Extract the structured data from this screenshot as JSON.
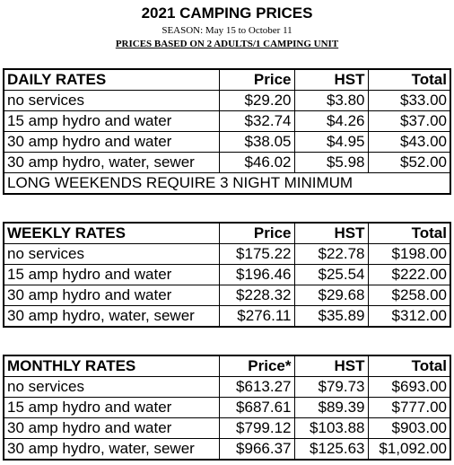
{
  "header": {
    "title": "2021 CAMPING PRICES",
    "season": "SEASON:  May 15 to October 11",
    "basis": "PRICES BASED ON 2 ADULTS/1 CAMPING UNIT"
  },
  "daily": {
    "heading": "DAILY RATES",
    "col_price": "Price",
    "col_hst": "HST",
    "col_total": "Total",
    "rows": [
      {
        "service": "no services",
        "price": "$29.20",
        "hst": "$3.80",
        "total": "$33.00"
      },
      {
        "service": "15 amp hydro and water",
        "price": "$32.74",
        "hst": "$4.26",
        "total": "$37.00"
      },
      {
        "service": "30 amp hydro and water",
        "price": "$38.05",
        "hst": "$4.95",
        "total": "$43.00"
      },
      {
        "service": "30 amp hydro, water, sewer",
        "price": "$46.02",
        "hst": "$5.98",
        "total": "$52.00"
      }
    ],
    "note": "LONG WEEKENDS REQUIRE 3 NIGHT MINIMUM"
  },
  "weekly": {
    "heading": "WEEKLY RATES",
    "col_price": "Price",
    "col_hst": "HST",
    "col_total": "Total",
    "rows": [
      {
        "service": "no services",
        "price": "$175.22",
        "hst": "$22.78",
        "total": "$198.00"
      },
      {
        "service": "15 amp hydro and water",
        "price": "$196.46",
        "hst": "$25.54",
        "total": "$222.00"
      },
      {
        "service": "30 amp hydro and water",
        "price": "$228.32",
        "hst": "$29.68",
        "total": "$258.00"
      },
      {
        "service": "30 amp hydro, water, sewer",
        "price": "$276.11",
        "hst": "$35.89",
        "total": "$312.00"
      }
    ]
  },
  "monthly": {
    "heading": "MONTHLY RATES",
    "col_price": "Price*",
    "col_hst": "HST",
    "col_total": "Total",
    "rows": [
      {
        "service": "no services",
        "price": "$613.27",
        "hst": "$79.73",
        "total": "$693.00"
      },
      {
        "service": "15 amp hydro and water",
        "price": "$687.61",
        "hst": "$89.39",
        "total": "$777.00"
      },
      {
        "service": "30 amp hydro and water",
        "price": "$799.12",
        "hst": "$103.88",
        "total": "$903.00"
      },
      {
        "service": "30 amp hydro, water, sewer",
        "price": "$966.37",
        "hst": "$125.63",
        "total": "$1,092.00"
      }
    ]
  }
}
